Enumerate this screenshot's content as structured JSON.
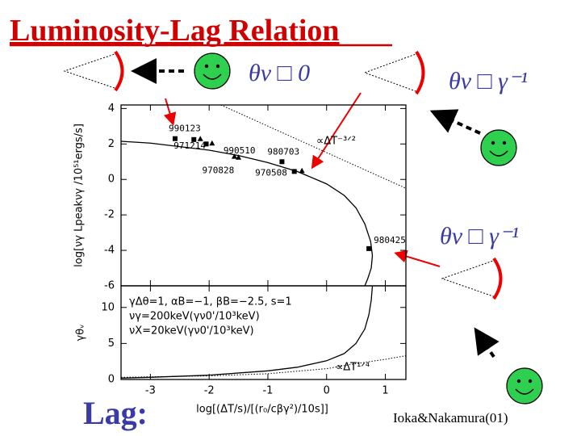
{
  "title": "Luminosity-Lag Relation",
  "conditions": [
    "θv □ 0",
    "θv □ γ⁻¹",
    "θv □ γ⁻¹"
  ],
  "lag_label": "Lag:",
  "credit": "Ioka&Nakamura(01)",
  "chart_data": [
    {
      "type": "scatter",
      "ylabel": "log[νγ Lpeakνγ /10⁵¹ergs/s]",
      "xlim": [
        -3.5,
        1.35
      ],
      "ylim": [
        -6,
        4.2
      ],
      "yticks": [
        -6,
        -4,
        -2,
        0,
        2,
        4
      ],
      "annotation": "∝ΔT⁻³ᐟ²",
      "series": [
        {
          "kind": "scatter",
          "color": "#000000",
          "x": [
            -2.58,
            -2.26,
            -2.15,
            -2.05,
            -1.95,
            -1.57,
            -1.5,
            -0.76,
            -0.55,
            -0.42,
            0.72
          ],
          "values": [
            2.3,
            2.25,
            2.3,
            2.0,
            2.05,
            1.3,
            1.25,
            1.0,
            0.45,
            0.5,
            -3.9
          ],
          "markers": [
            "square",
            "square",
            "triangle",
            "square",
            "triangle",
            "triangle",
            "triangle",
            "square",
            "square",
            "triangle",
            "square"
          ],
          "point_labels": [
            "990123",
            "971214",
            null,
            null,
            "990510",
            "970828",
            null,
            "980703",
            null,
            "970508",
            "980425"
          ]
        },
        {
          "kind": "line",
          "style": "solid",
          "color": "#000000",
          "x": [
            -3.5,
            -3,
            -2.5,
            -2,
            -1.5,
            -1,
            -0.5,
            0,
            0.3,
            0.5,
            0.65,
            0.75,
            0.78,
            0.76,
            0.7,
            0.65
          ],
          "values": [
            2.15,
            2.05,
            1.85,
            1.65,
            1.35,
            0.95,
            0.45,
            -0.25,
            -0.9,
            -1.6,
            -2.5,
            -3.5,
            -4.3,
            -5,
            -5.6,
            -6
          ]
        },
        {
          "kind": "line",
          "style": "dotted",
          "color": "#000000",
          "x": [
            -1.8,
            1.35
          ],
          "values": [
            4.2,
            -0.5
          ]
        }
      ]
    },
    {
      "type": "line",
      "ylabel": "γθᵥ",
      "xlabel": "log[(ΔT/s)/[(r₀/cβγ²)/10s]]",
      "xlim": [
        -3.5,
        1.35
      ],
      "xticks": [
        -3,
        -2,
        -1,
        0,
        1
      ],
      "ylim": [
        0,
        13
      ],
      "yticks": [
        0,
        5,
        10
      ],
      "notes": [
        "γΔθ=1,  αB=−1,  βB=−2.5,  s=1",
        "νγ=200keV(γν0'/10³keV)",
        "νX=20keV(γν0'/10³keV)"
      ],
      "annotation": "∝ΔT¹ᐟ⁴",
      "series": [
        {
          "kind": "line",
          "style": "solid",
          "color": "#000000",
          "x": [
            -3.5,
            -3,
            -2,
            -1,
            -0.5,
            0,
            0.3,
            0.5,
            0.65,
            0.72,
            0.76,
            0.78
          ],
          "values": [
            0.2,
            0.3,
            0.6,
            1.2,
            1.7,
            2.6,
            3.6,
            5,
            7,
            9,
            11,
            13
          ]
        },
        {
          "kind": "line",
          "style": "dotted",
          "color": "#000000",
          "x": [
            -3.5,
            -2,
            -1,
            0,
            0.5,
            1,
            1.35
          ],
          "values": [
            0.3,
            0.5,
            0.8,
            1.5,
            2.2,
            2.8,
            3.3
          ]
        }
      ]
    }
  ]
}
